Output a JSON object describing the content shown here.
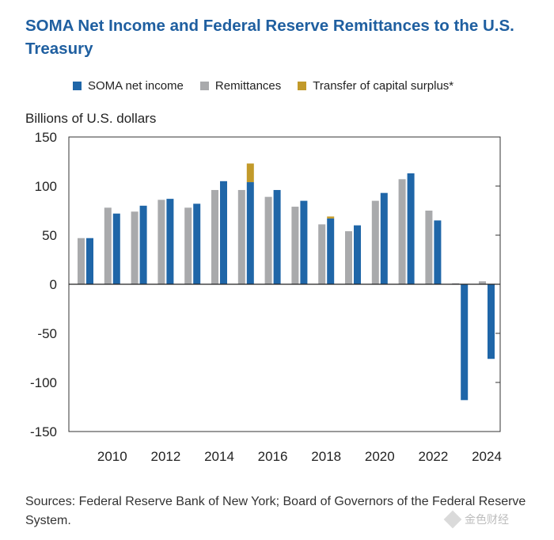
{
  "title": "SOMA Net Income and Federal Reserve Remittances to the U.S. Treasury",
  "source": "Sources: Federal Reserve Bank of New York; Board of Governors of the Federal Reserve System.",
  "watermark": {
    "text": "金色财经"
  },
  "colors": {
    "soma": "#1f66a8",
    "remit": "#a9aaac",
    "transfer": "#c29a2a",
    "title": "#1f5fa0"
  },
  "chart_data": {
    "type": "bar",
    "title": "SOMA Net Income and Federal Reserve Remittances to the U.S. Treasury",
    "ylabel": "Billions of U.S. dollars",
    "xlabel": "",
    "ylim": [
      -150,
      150
    ],
    "yticks": [
      150,
      100,
      50,
      0,
      -50,
      -100,
      -150
    ],
    "ytick_labels": [
      "150",
      "100",
      "50",
      "0",
      "-50",
      "-100",
      "-150"
    ],
    "legend_position": "top",
    "grid": false,
    "categories": [
      "2009",
      "2010",
      "2011",
      "2012",
      "2013",
      "2014",
      "2015",
      "2016",
      "2017",
      "2018",
      "2019",
      "2020",
      "2021",
      "2022",
      "2023",
      "2024"
    ],
    "xtick_labels": [
      "2010",
      "2012",
      "2014",
      "2016",
      "2018",
      "2020",
      "2022",
      "2024"
    ],
    "series": [
      {
        "name": "SOMA net income",
        "key": "soma",
        "values": [
          47,
          72,
          80,
          87,
          82,
          105,
          104,
          96,
          85,
          67,
          60,
          93,
          113,
          65,
          -118,
          -76
        ]
      },
      {
        "name": "Remittances",
        "key": "remit",
        "values": [
          47,
          78,
          74,
          86,
          78,
          96,
          96,
          89,
          79,
          61,
          54,
          85,
          107,
          75,
          1,
          3
        ]
      },
      {
        "name": "Transfer of capital surplus*",
        "key": "transfer",
        "values": [
          0,
          0,
          0,
          0,
          0,
          0,
          19,
          0,
          0,
          2,
          0,
          0,
          0,
          0,
          0,
          0
        ]
      }
    ]
  }
}
